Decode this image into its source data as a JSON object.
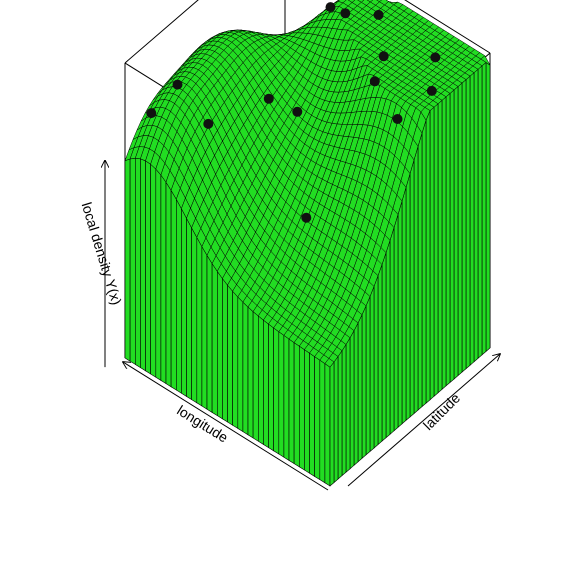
{
  "chart_data": {
    "type": "surface3d",
    "title": "",
    "xlabel": "longitude",
    "ylabel": "latitude",
    "zlabel": "local density Y(x)",
    "surface_color": "#22dd22",
    "edge_color": "#000000",
    "point_color": "#111111",
    "grid_size": 40,
    "xlim": [
      0,
      1
    ],
    "ylim": [
      0,
      1
    ],
    "zlim": [
      0,
      1
    ],
    "peaks": [
      {
        "x": 0.05,
        "y": 0.72,
        "h": 0.55,
        "s": 0.28
      },
      {
        "x": 0.22,
        "y": 0.95,
        "h": 0.42,
        "s": 0.22
      },
      {
        "x": 0.62,
        "y": 0.92,
        "h": 0.38,
        "s": 0.18
      },
      {
        "x": 0.92,
        "y": 0.55,
        "h": 0.4,
        "s": 0.22
      },
      {
        "x": 0.9,
        "y": 0.12,
        "h": 0.36,
        "s": 0.2
      },
      {
        "x": 0.55,
        "y": 0.45,
        "h": 0.18,
        "s": 0.25
      }
    ],
    "base_level": 0.38,
    "points": [
      {
        "x": 0.05,
        "y": 0.7
      },
      {
        "x": 0.1,
        "y": 0.55
      },
      {
        "x": 0.15,
        "y": 0.85
      },
      {
        "x": 0.25,
        "y": 0.6
      },
      {
        "x": 0.3,
        "y": 0.72
      },
      {
        "x": 0.45,
        "y": 0.88
      },
      {
        "x": 0.55,
        "y": 0.8
      },
      {
        "x": 0.6,
        "y": 0.95
      },
      {
        "x": 0.7,
        "y": 0.9
      },
      {
        "x": 0.35,
        "y": 0.3
      },
      {
        "x": 0.55,
        "y": 0.5
      },
      {
        "x": 0.65,
        "y": 0.45
      },
      {
        "x": 0.75,
        "y": 0.2
      },
      {
        "x": 0.9,
        "y": 0.2
      },
      {
        "x": 0.95,
        "y": 0.1
      }
    ]
  }
}
